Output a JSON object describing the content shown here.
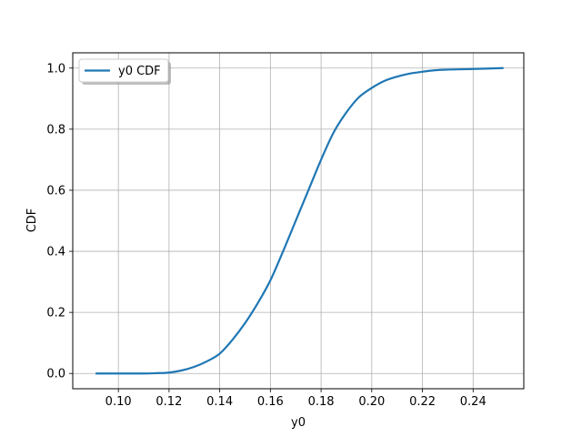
{
  "chart_data": {
    "type": "line",
    "title": "",
    "xlabel": "y0",
    "ylabel": "CDF",
    "xlim": [
      0.082,
      0.26
    ],
    "ylim": [
      -0.05,
      1.05
    ],
    "xticks": [
      0.1,
      0.12,
      0.14,
      0.16,
      0.18,
      0.2,
      0.22,
      0.24
    ],
    "xtick_labels": [
      "0.10",
      "0.12",
      "0.14",
      "0.16",
      "0.18",
      "0.20",
      "0.22",
      "0.24"
    ],
    "yticks": [
      0.0,
      0.2,
      0.4,
      0.6,
      0.8,
      1.0
    ],
    "ytick_labels": [
      "0.0",
      "0.2",
      "0.4",
      "0.6",
      "0.8",
      "1.0"
    ],
    "grid": true,
    "legend_placement": "top-left",
    "series": [
      {
        "name": "y0 CDF",
        "color": "#1f77b4",
        "x": [
          0.091,
          0.1,
          0.11,
          0.115,
          0.12,
          0.125,
          0.13,
          0.135,
          0.14,
          0.145,
          0.15,
          0.155,
          0.16,
          0.165,
          0.17,
          0.175,
          0.18,
          0.185,
          0.19,
          0.195,
          0.2,
          0.205,
          0.21,
          0.215,
          0.22,
          0.225,
          0.23,
          0.24,
          0.252
        ],
        "y": [
          0.0,
          0.0,
          0.0,
          0.001,
          0.003,
          0.01,
          0.022,
          0.04,
          0.065,
          0.11,
          0.165,
          0.23,
          0.305,
          0.4,
          0.5,
          0.6,
          0.7,
          0.79,
          0.855,
          0.905,
          0.935,
          0.958,
          0.972,
          0.982,
          0.988,
          0.993,
          0.995,
          0.997,
          1.0
        ]
      }
    ]
  }
}
